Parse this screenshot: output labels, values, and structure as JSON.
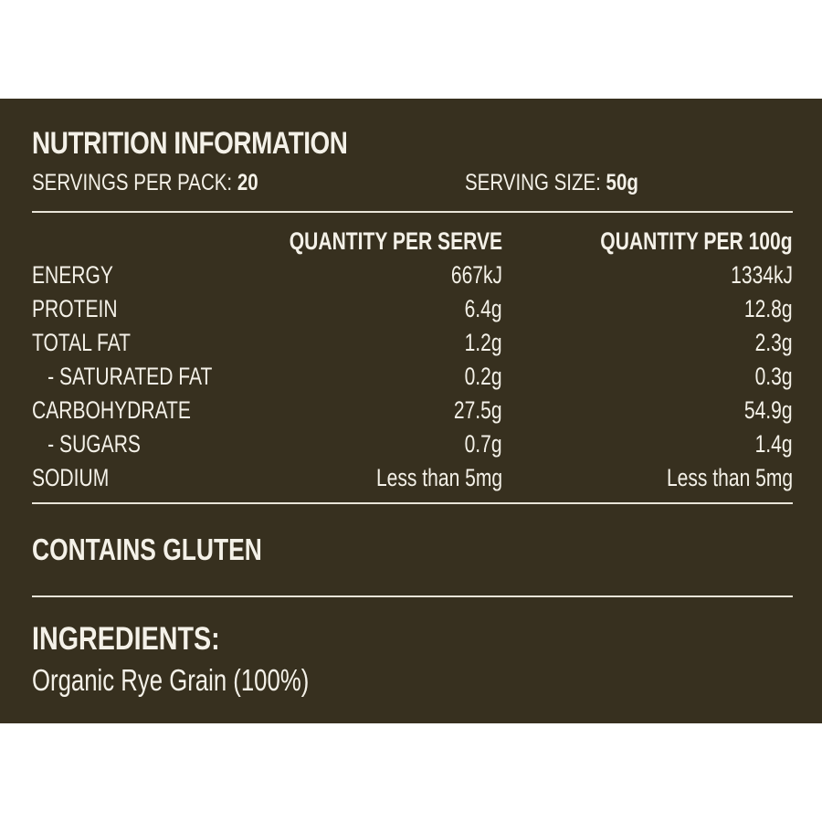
{
  "panel": {
    "background": "#37301f",
    "text_color": "#f4f1e8"
  },
  "title": "NUTRITION INFORMATION",
  "servings_per_pack": {
    "label": "SERVINGS PER PACK:",
    "value": "20"
  },
  "serving_size": {
    "label": "SERVING SIZE:",
    "value": "50g"
  },
  "table": {
    "headers": [
      "",
      "QUANTITY PER SERVE",
      "QUANTITY PER 100g"
    ],
    "rows": [
      {
        "name": "ENERGY",
        "per_serve": "667kJ",
        "per_100g": "1334kJ"
      },
      {
        "name": "PROTEIN",
        "per_serve": "6.4g",
        "per_100g": "12.8g"
      },
      {
        "name": "TOTAL FAT",
        "per_serve": "1.2g",
        "per_100g": "2.3g"
      },
      {
        "name": "- SATURATED FAT",
        "per_serve": "0.2g",
        "per_100g": "0.3g"
      },
      {
        "name": "CARBOHYDRATE",
        "per_serve": "27.5g",
        "per_100g": "54.9g"
      },
      {
        "name": "- SUGARS",
        "per_serve": "0.7g",
        "per_100g": "1.4g"
      },
      {
        "name": "SODIUM",
        "per_serve": "Less than 5mg",
        "per_100g": "Less than 5mg"
      }
    ]
  },
  "allergen": "CONTAINS GLUTEN",
  "ingredients": {
    "heading": "INGREDIENTS:",
    "text": "Organic Rye Grain (100%)"
  }
}
